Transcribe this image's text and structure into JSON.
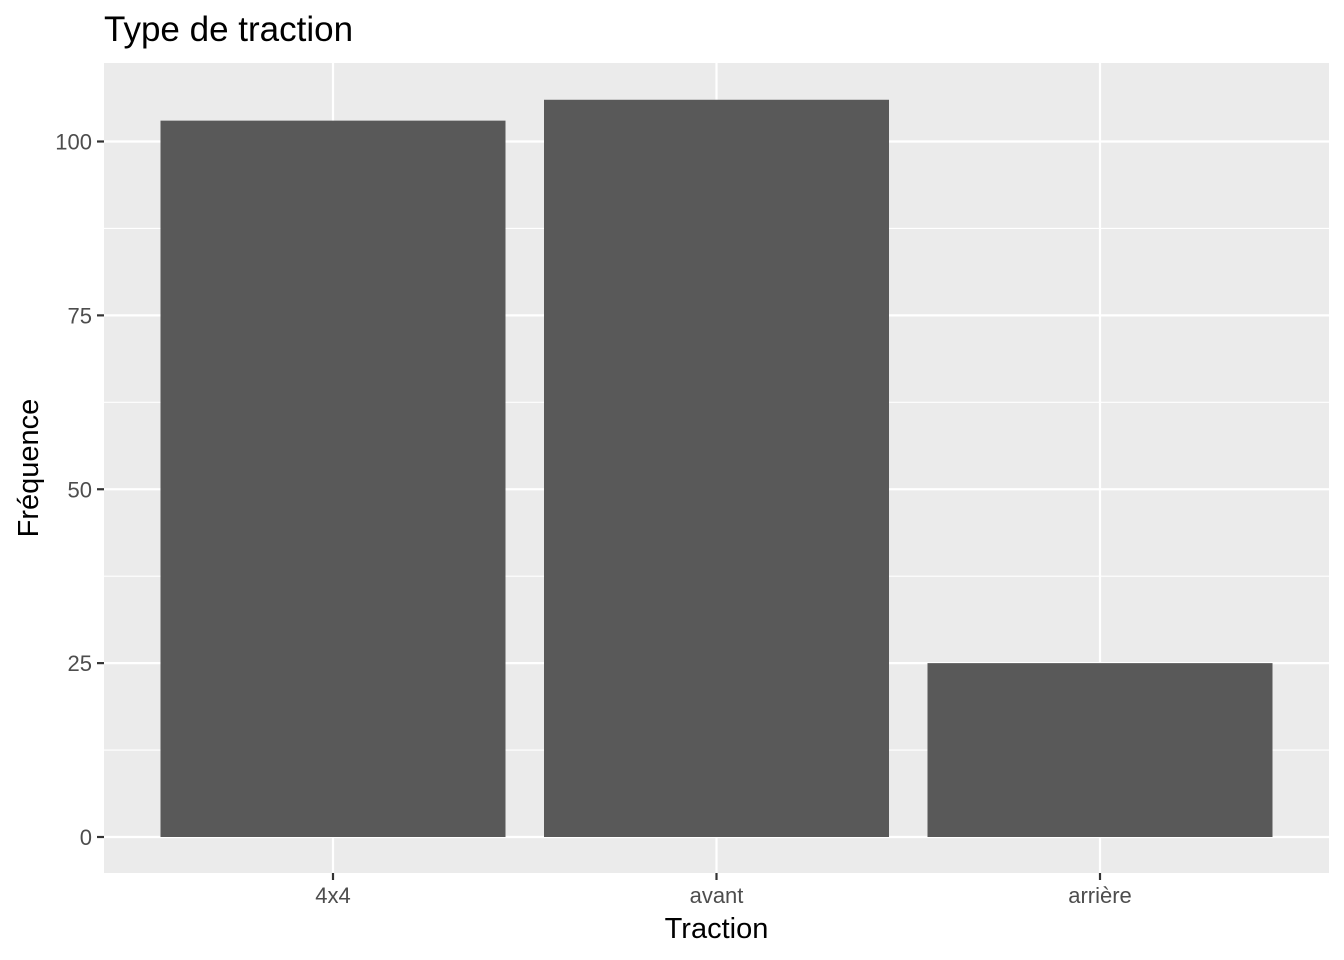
{
  "chart_data": {
    "type": "bar",
    "title": "Type de traction",
    "xlabel": "Traction",
    "ylabel": "Fréquence",
    "categories": [
      "4x4",
      "avant",
      "arrière"
    ],
    "values": [
      103,
      106,
      25
    ],
    "ylim": [
      0,
      110.3
    ],
    "yticks": [
      0,
      25,
      50,
      75,
      100
    ],
    "grid": true,
    "legend": "none",
    "colors": {
      "panel": "#ebebeb",
      "grid": "#ffffff",
      "bar": "#595959",
      "tick": "#333333"
    }
  }
}
